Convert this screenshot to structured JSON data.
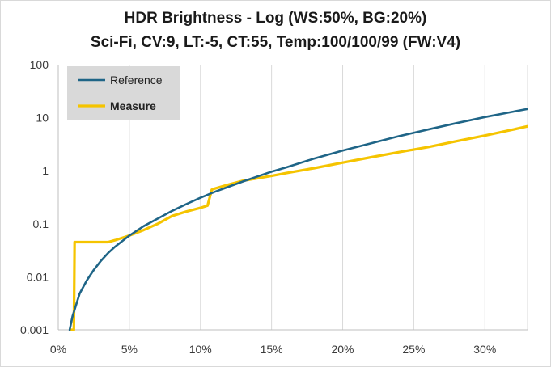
{
  "chart_data": {
    "type": "line",
    "title": "HDR Brightness - Log (WS:50%, BG:20%)",
    "subtitle": "Sci-Fi, CV:9, LT:-5, CT:55, Temp:100/100/99 (FW:V4)",
    "xlabel": "",
    "ylabel": "",
    "x_scale": "linear",
    "y_scale": "log",
    "xlim": [
      0,
      33
    ],
    "ylim": [
      0.001,
      100
    ],
    "x_ticks": [
      "0%",
      "5%",
      "10%",
      "15%",
      "20%",
      "25%",
      "30%"
    ],
    "y_ticks": [
      "0.001",
      "0.01",
      "0.1",
      "1",
      "10",
      "100"
    ],
    "grid": "vertical",
    "legend_position": "top-left",
    "series": [
      {
        "name": "Reference",
        "color": "#1f6587",
        "x": [
          0.8,
          1,
          1.5,
          2,
          2.5,
          3,
          3.5,
          4,
          5,
          6,
          7,
          8,
          9,
          10,
          11,
          12,
          13,
          14,
          15,
          16,
          18,
          20,
          22,
          24,
          26,
          28,
          30,
          32,
          33
        ],
        "y": [
          0.001,
          0.0018,
          0.0048,
          0.0085,
          0.0135,
          0.02,
          0.028,
          0.037,
          0.06,
          0.09,
          0.125,
          0.175,
          0.235,
          0.31,
          0.4,
          0.5,
          0.63,
          0.78,
          0.96,
          1.15,
          1.7,
          2.4,
          3.3,
          4.5,
          6.0,
          7.9,
          10.3,
          13.0,
          14.6
        ]
      },
      {
        "name": "Measure",
        "color": "#f5c400",
        "x": [
          0.85,
          1.1,
          1.15,
          2,
          3,
          3.5,
          4,
          5,
          6,
          7,
          8,
          9,
          10,
          10.5,
          10.8,
          11,
          12,
          13,
          14,
          15,
          16,
          18,
          20,
          22,
          24,
          26,
          28,
          30,
          32,
          33
        ],
        "y": [
          0.001,
          0.001,
          0.045,
          0.045,
          0.045,
          0.045,
          0.049,
          0.06,
          0.076,
          0.1,
          0.14,
          0.17,
          0.2,
          0.22,
          0.44,
          0.46,
          0.55,
          0.65,
          0.72,
          0.8,
          0.9,
          1.12,
          1.42,
          1.8,
          2.25,
          2.8,
          3.6,
          4.6,
          6.0,
          6.9
        ]
      }
    ]
  }
}
